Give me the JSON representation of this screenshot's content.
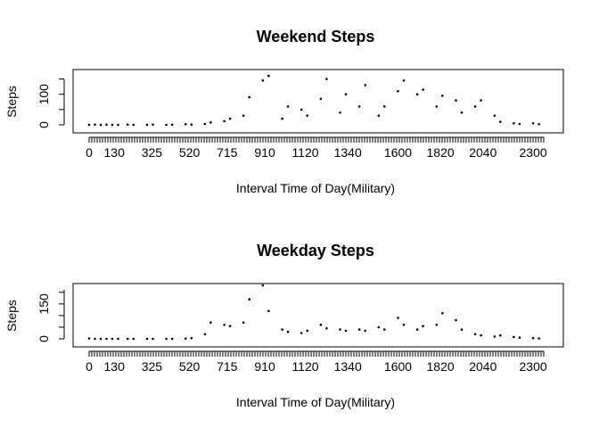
{
  "chart_data": [
    {
      "type": "scatter",
      "title": "Weekend Steps",
      "xlabel": "Interval Time of Day(Military)",
      "ylabel": "Steps",
      "x_tick_labels": [
        "0",
        "130",
        "325",
        "520",
        "715",
        "910",
        "1120",
        "1340",
        "1600",
        "1820",
        "2040",
        "2300"
      ],
      "x_tick_values": [
        0,
        130,
        325,
        520,
        715,
        910,
        1120,
        1340,
        1600,
        1820,
        2040,
        2300
      ],
      "y_ticks": [
        0,
        50,
        100,
        150
      ],
      "y_tick_labels": [
        "0",
        "100"
      ],
      "ylim": [
        0,
        175
      ],
      "grid": false,
      "series": [
        {
          "x": [
            0,
            30,
            60,
            90,
            120,
            150,
            200,
            230,
            300,
            330,
            400,
            430,
            500,
            530,
            600,
            630,
            700,
            730,
            800,
            830,
            900,
            930,
            1000,
            1030,
            1100,
            1130,
            1200,
            1230,
            1300,
            1330,
            1400,
            1430,
            1500,
            1530,
            1600,
            1630,
            1700,
            1730,
            1800,
            1830,
            1900,
            1930,
            2000,
            2030,
            2100,
            2130,
            2200,
            2230,
            2300,
            2330
          ],
          "y": [
            0,
            1,
            0,
            1,
            0,
            0,
            1,
            0,
            0,
            1,
            0,
            1,
            2,
            1,
            3,
            8,
            12,
            20,
            30,
            90,
            145,
            160,
            20,
            60,
            50,
            30,
            85,
            150,
            40,
            100,
            60,
            130,
            30,
            60,
            110,
            145,
            100,
            115,
            60,
            95,
            80,
            40,
            60,
            80,
            30,
            10,
            5,
            3,
            5,
            2
          ]
        }
      ]
    },
    {
      "type": "scatter",
      "title": "Weekday Steps",
      "xlabel": "Interval Time of Day(Military)",
      "ylabel": "Steps",
      "x_tick_labels": [
        "0",
        "130",
        "325",
        "520",
        "715",
        "910",
        "1120",
        "1340",
        "1600",
        "1820",
        "2040",
        "2300"
      ],
      "x_tick_values": [
        0,
        130,
        325,
        520,
        715,
        910,
        1120,
        1340,
        1600,
        1820,
        2040,
        2300
      ],
      "y_ticks": [
        0,
        50,
        100,
        150,
        200
      ],
      "y_tick_labels": [
        "0",
        "150"
      ],
      "ylim": [
        0,
        230
      ],
      "grid": false,
      "series": [
        {
          "x": [
            0,
            30,
            60,
            90,
            120,
            150,
            200,
            230,
            300,
            330,
            400,
            430,
            500,
            530,
            600,
            630,
            700,
            730,
            800,
            830,
            900,
            930,
            1000,
            1030,
            1100,
            1130,
            1200,
            1230,
            1300,
            1330,
            1400,
            1430,
            1500,
            1530,
            1600,
            1630,
            1700,
            1730,
            1800,
            1830,
            1900,
            1930,
            2000,
            2030,
            2100,
            2130,
            2200,
            2230,
            2300,
            2330
          ],
          "y": [
            2,
            0,
            0,
            0,
            0,
            0,
            0,
            0,
            0,
            0,
            0,
            0,
            1,
            3,
            20,
            70,
            60,
            55,
            70,
            170,
            230,
            120,
            40,
            30,
            25,
            35,
            60,
            45,
            40,
            35,
            40,
            35,
            50,
            40,
            90,
            60,
            40,
            55,
            60,
            110,
            80,
            40,
            20,
            15,
            10,
            15,
            8,
            5,
            3,
            2
          ]
        }
      ]
    }
  ]
}
